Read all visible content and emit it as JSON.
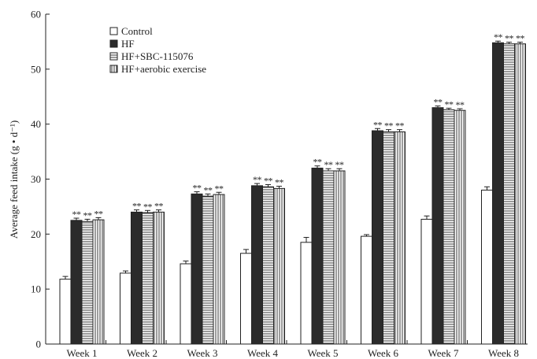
{
  "chart_data": {
    "type": "bar",
    "title": "",
    "xlabel": "",
    "ylabel": "Average feed intake (g • d⁻¹)",
    "ylim": [
      0,
      60
    ],
    "yticks": [
      0,
      10,
      20,
      30,
      40,
      50,
      60
    ],
    "categories": [
      "Week 1",
      "Week 2",
      "Week 3",
      "Week 4",
      "Week 5",
      "Week 6",
      "Week 7",
      "Week 8"
    ],
    "legend_position": "top-left",
    "series": [
      {
        "name": "Control",
        "pattern": "white",
        "values": [
          11.8,
          12.9,
          14.6,
          16.5,
          18.5,
          19.6,
          22.7,
          28.0
        ],
        "errors": [
          0.5,
          0.4,
          0.5,
          0.7,
          0.9,
          0.3,
          0.6,
          0.6
        ],
        "sig": [
          "",
          "",
          "",
          "",
          "",
          "",
          "",
          ""
        ]
      },
      {
        "name": "HF",
        "pattern": "black",
        "values": [
          22.5,
          24.0,
          27.3,
          28.8,
          32.0,
          38.8,
          43.0,
          54.8
        ],
        "errors": [
          0.4,
          0.4,
          0.4,
          0.4,
          0.4,
          0.4,
          0.3,
          0.3
        ],
        "sig": [
          "**",
          "**",
          "**",
          "**",
          "**",
          "**",
          "**",
          "**"
        ]
      },
      {
        "name": "HF+SBC-115076",
        "pattern": "horizontal",
        "values": [
          22.3,
          23.9,
          26.9,
          28.6,
          31.5,
          38.6,
          42.6,
          54.6
        ],
        "errors": [
          0.4,
          0.4,
          0.4,
          0.4,
          0.4,
          0.4,
          0.3,
          0.3
        ],
        "sig": [
          "**",
          "**",
          "**",
          "**",
          "**",
          "**",
          "**",
          "**"
        ]
      },
      {
        "name": "HF+aerobic exercise",
        "pattern": "vertical",
        "values": [
          22.6,
          24.0,
          27.2,
          28.3,
          31.5,
          38.6,
          42.5,
          54.6
        ],
        "errors": [
          0.4,
          0.4,
          0.4,
          0.4,
          0.4,
          0.4,
          0.3,
          0.3
        ],
        "sig": [
          "**",
          "**",
          "**",
          "**",
          "**",
          "**",
          "**",
          "**"
        ]
      }
    ]
  }
}
